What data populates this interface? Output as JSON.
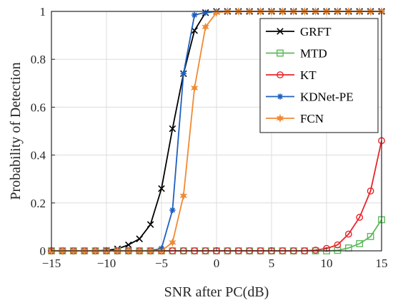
{
  "chart_data": {
    "type": "line",
    "xlabel": "SNR after PC(dB)",
    "ylabel": "Probability of Detection",
    "xlim": [
      -15,
      15
    ],
    "ylim": [
      0,
      1
    ],
    "xticks": [
      "-15",
      "-10",
      "-5",
      "0",
      "5",
      "10",
      "15"
    ],
    "xtick_values": [
      -15,
      -10,
      -5,
      0,
      5,
      10,
      15
    ],
    "yticks": [
      "0",
      "0.2",
      "0.4",
      "0.6",
      "0.8",
      "1"
    ],
    "ytick_values": [
      0,
      0.2,
      0.4,
      0.6,
      0.8,
      1
    ],
    "grid": true,
    "legend_position": "top-right",
    "x": [
      -15,
      -14,
      -13,
      -12,
      -11,
      -10,
      -9,
      -8,
      -7,
      -6,
      -5,
      -4,
      -3,
      -2,
      -1,
      0,
      1,
      2,
      3,
      4,
      5,
      6,
      7,
      8,
      9,
      10,
      11,
      12,
      13,
      14,
      15
    ],
    "series": [
      {
        "name": "GRFT",
        "color": "#000000",
        "marker": "x",
        "values": [
          0,
          0,
          0,
          0,
          0,
          0.002,
          0.008,
          0.025,
          0.05,
          0.11,
          0.26,
          0.51,
          0.74,
          0.92,
          0.995,
          1,
          1,
          1,
          1,
          1,
          1,
          1,
          1,
          1,
          1,
          1,
          1,
          1,
          1,
          1,
          1
        ]
      },
      {
        "name": "MTD",
        "color": "#5cb85c",
        "marker": "square",
        "values": [
          0,
          0,
          0,
          0,
          0,
          0,
          0,
          0,
          0,
          0,
          0,
          0,
          0,
          0,
          0,
          0,
          0,
          0,
          0,
          0,
          0,
          0,
          0,
          0,
          0,
          0,
          0.002,
          0.012,
          0.03,
          0.06,
          0.13
        ]
      },
      {
        "name": "KT",
        "color": "#e8262a",
        "marker": "circle",
        "values": [
          0,
          0,
          0,
          0,
          0,
          0,
          0,
          0,
          0,
          0,
          0,
          0,
          0,
          0,
          0,
          0,
          0,
          0,
          0,
          0,
          0,
          0,
          0,
          0,
          0.003,
          0.01,
          0.025,
          0.07,
          0.14,
          0.25,
          0.46
        ]
      },
      {
        "name": "KDNet-PE",
        "color": "#1f5fbf",
        "marker": "asterisk",
        "values": [
          0,
          0,
          0,
          0,
          0,
          0,
          0,
          0,
          0,
          0,
          0.01,
          0.17,
          0.74,
          0.985,
          0.995,
          1,
          1,
          1,
          1,
          1,
          1,
          1,
          1,
          1,
          1,
          1,
          1,
          1,
          1,
          1,
          1
        ]
      },
      {
        "name": "FCN",
        "color": "#f08a33",
        "marker": "star",
        "values": [
          0,
          0,
          0,
          0,
          0,
          0,
          0,
          0,
          0,
          0,
          0,
          0.035,
          0.23,
          0.68,
          0.935,
          0.995,
          1,
          1,
          1,
          1,
          1,
          1,
          1,
          1,
          1,
          1,
          1,
          1,
          1,
          1,
          1
        ]
      }
    ]
  }
}
